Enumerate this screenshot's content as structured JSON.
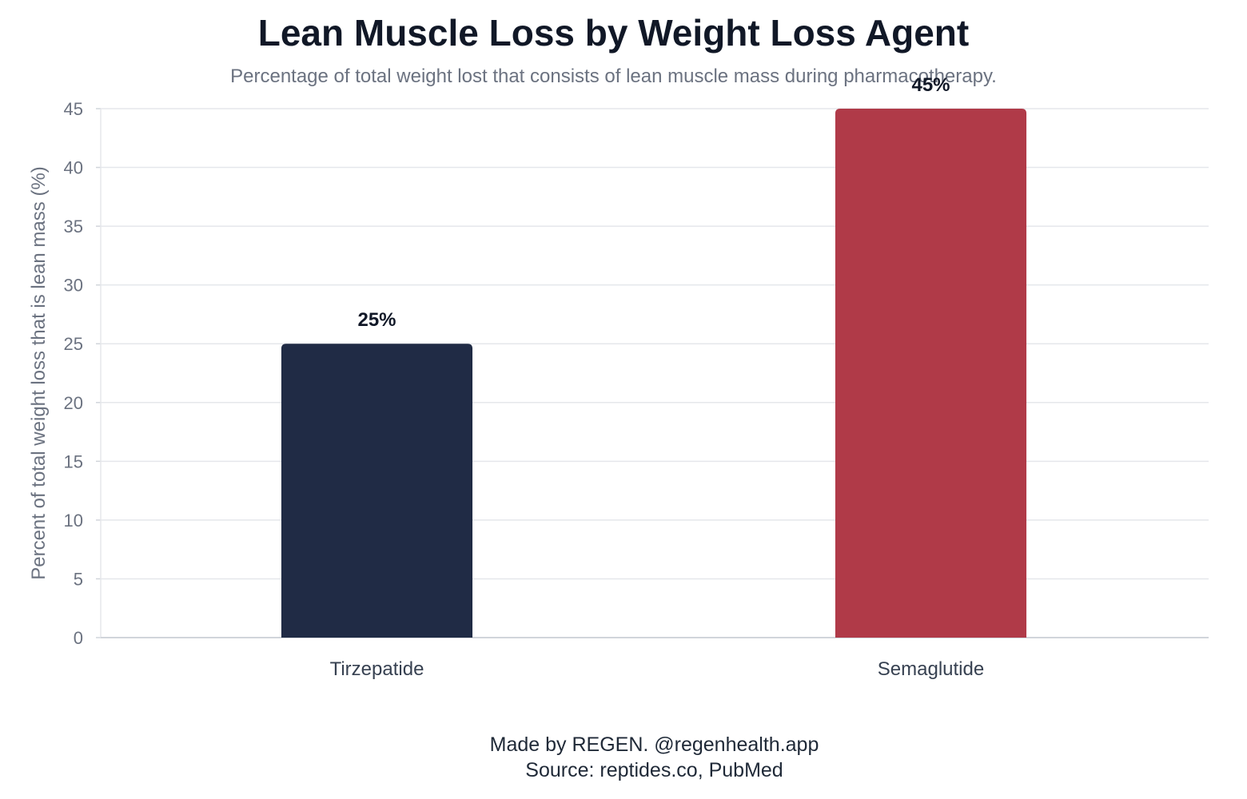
{
  "chart_data": {
    "type": "bar",
    "title": "Lean Muscle Loss by Weight Loss Agent",
    "subtitle": "Percentage of total weight lost that consists of lean muscle mass during pharmacotherapy.",
    "xlabel": "",
    "ylabel": "Percent of total weight loss that is lean mass (%)",
    "categories": [
      "Tirzepatide",
      "Semaglutide"
    ],
    "values": [
      25,
      45
    ],
    "data_labels": [
      "25%",
      "45%"
    ],
    "colors": [
      "#202b45",
      "#b03a48"
    ],
    "ylim": [
      0,
      45
    ],
    "yticks": [
      0,
      5,
      10,
      15,
      20,
      25,
      30,
      35,
      40,
      45
    ],
    "grid": true,
    "legend": "none"
  },
  "footer": {
    "credit": "Made by REGEN. @regenhealth.app",
    "source": "Source: reptides.co, PubMed"
  }
}
